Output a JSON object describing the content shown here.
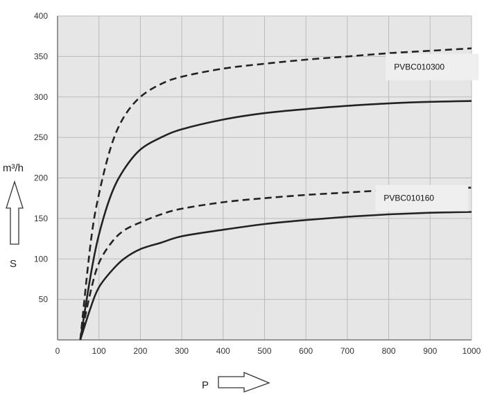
{
  "chart_data": {
    "type": "line",
    "title": "",
    "xlabel": "P",
    "ylabel_unit": "m³/h",
    "ylabel_symbol": "S",
    "xlim": [
      0,
      1000
    ],
    "ylim": [
      0,
      400
    ],
    "x_ticks": [
      0,
      100,
      200,
      300,
      400,
      500,
      600,
      700,
      800,
      900,
      1000
    ],
    "y_ticks": [
      50,
      100,
      150,
      200,
      250,
      300,
      350,
      400
    ],
    "grid": true,
    "series": [
      {
        "label": "PVBC010300",
        "style": "dashed",
        "x": [
          55,
          80,
          100,
          130,
          160,
          200,
          250,
          300,
          400,
          500,
          600,
          700,
          800,
          900,
          1000
        ],
        "y": [
          0,
          120,
          180,
          240,
          275,
          300,
          316,
          325,
          335,
          341,
          346,
          350,
          354,
          357,
          360
        ]
      },
      {
        "style": "solid",
        "x": [
          55,
          80,
          100,
          130,
          160,
          200,
          250,
          300,
          400,
          500,
          600,
          700,
          800,
          900,
          1000
        ],
        "y": [
          0,
          80,
          130,
          180,
          210,
          235,
          250,
          260,
          272,
          280,
          285,
          289,
          292,
          294,
          295
        ]
      },
      {
        "label": "PVBC010160",
        "style": "dashed",
        "x": [
          55,
          80,
          100,
          130,
          160,
          200,
          250,
          300,
          400,
          500,
          600,
          700,
          800,
          900,
          1000
        ],
        "y": [
          0,
          60,
          95,
          120,
          135,
          145,
          155,
          162,
          170,
          175,
          179,
          182,
          185,
          187,
          188
        ]
      },
      {
        "style": "solid",
        "x": [
          55,
          80,
          100,
          130,
          160,
          200,
          250,
          300,
          400,
          500,
          600,
          700,
          800,
          900,
          1000
        ],
        "y": [
          0,
          40,
          65,
          85,
          100,
          112,
          120,
          128,
          136,
          143,
          148,
          152,
          155,
          157,
          158
        ]
      }
    ],
    "colors": {
      "line": "#222222",
      "grid": "#bbbbbb",
      "background": "#e6e6e6",
      "label_box": "#efefef"
    }
  }
}
